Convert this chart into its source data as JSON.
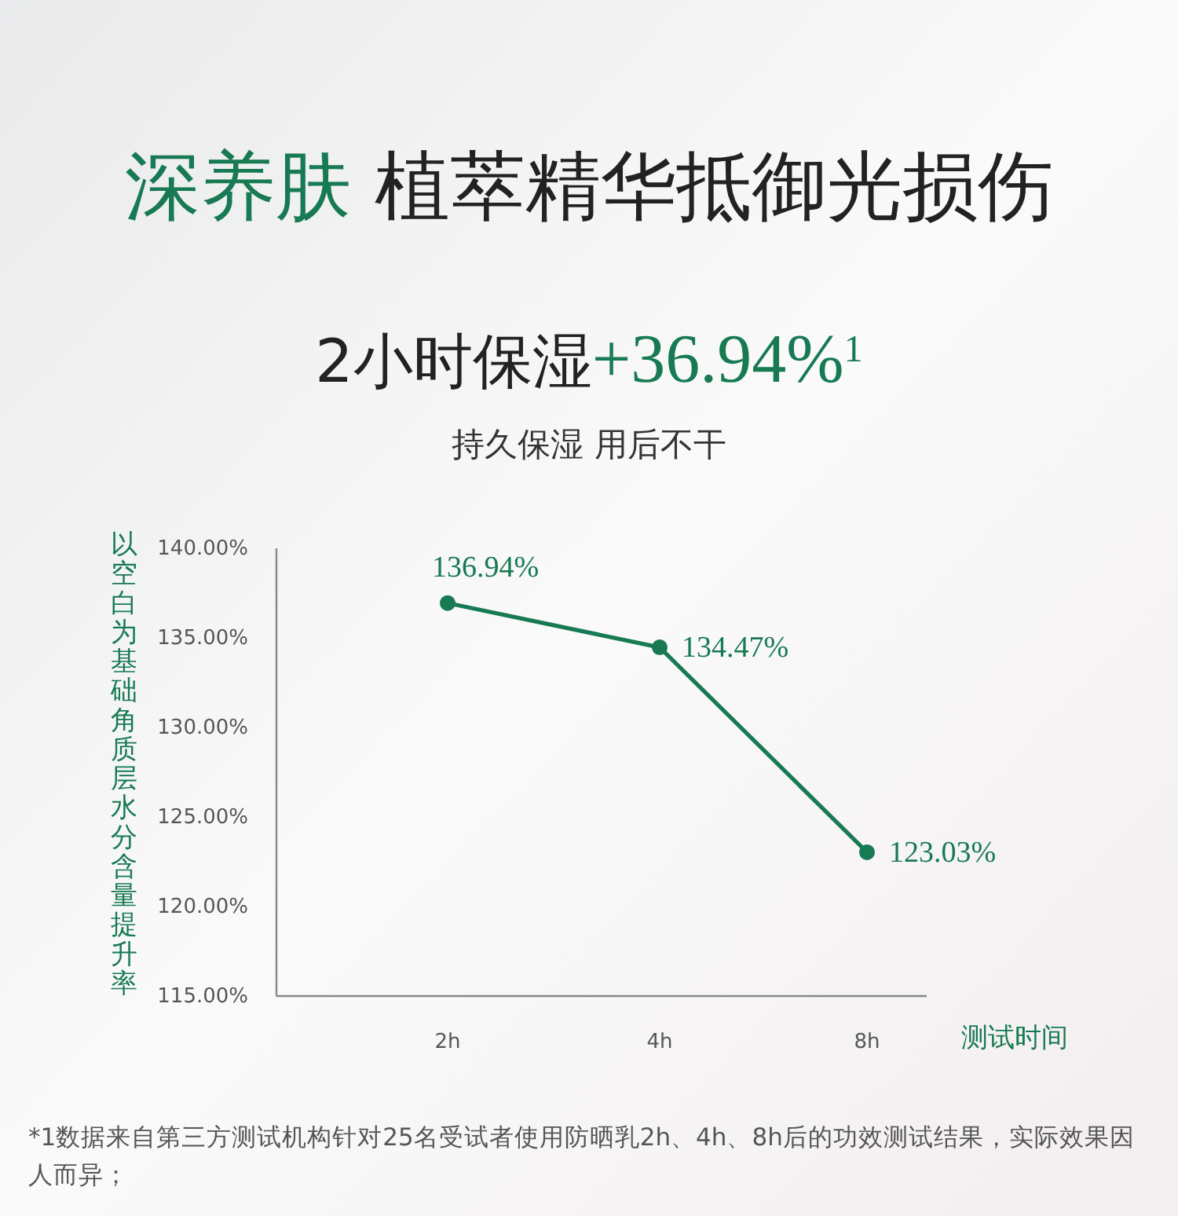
{
  "chart_data": {
    "type": "line",
    "title": "深养肤 植萃精华抵御光损伤",
    "subtitle": "2小时保湿+36.94%$^{1}$",
    "annotations": [
      "持久保湿 用后不干",
      "*1数据来自第三方测试机构针对25名受试者使用防晒乳2h、4h、8h后的功效测试结果，实际效果因人而异；"
    ],
    "ylabel": "以空白为基础角质层水分含量提升率",
    "xlabel": "测试时间",
    "categories": [
      "2h",
      "4h",
      "8h"
    ],
    "series": [
      {
        "color": "#177a53",
        "values": [
          136.94,
          134.47,
          123.03
        ],
        "value_labels": [
          "136.94%",
          "134.47%",
          "123.03%"
        ]
      }
    ],
    "ylim": [
      115,
      140
    ],
    "yticks": [
      {
        "value": 115,
        "label": "115.00%"
      },
      {
        "value": 120,
        "label": "120.00%"
      },
      {
        "value": 125,
        "label": "125.00%"
      },
      {
        "value": 130,
        "label": "130.00%"
      },
      {
        "value": 135,
        "label": "135.00%"
      },
      {
        "value": 140,
        "label": "140.00%"
      }
    ],
    "marker": "circle",
    "grid": false
  }
}
